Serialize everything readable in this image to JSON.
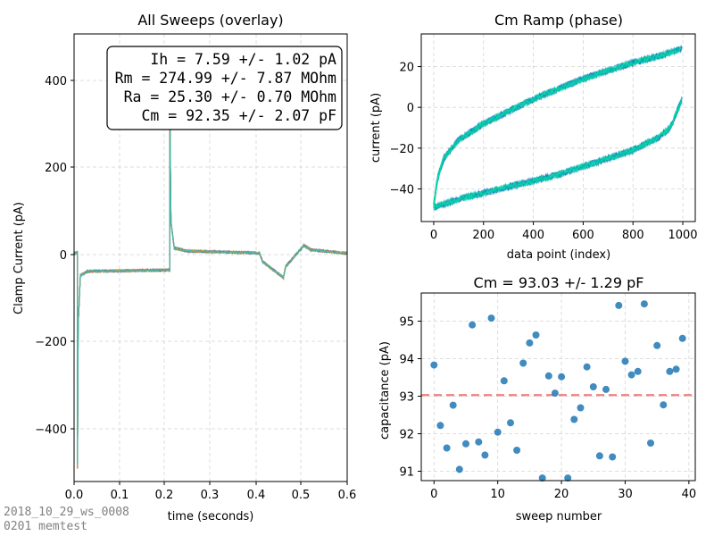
{
  "colors": {
    "sweep_traces": [
      "#1f77b4",
      "#ff7f0e",
      "#2ca02c",
      "#d62728",
      "#9467bd",
      "#8c564b",
      "#e377c2",
      "#7f7f7f",
      "#bcbd22",
      "#17becf"
    ],
    "ramp_start": "#1020d8",
    "ramp_end": "#00f59a",
    "scatter": "#1f77b4",
    "mean_line": "#f08080"
  },
  "footer": {
    "line1": "2018_10_29_ws_0008",
    "line2": "0201 memtest"
  },
  "chart_data": [
    {
      "type": "line",
      "title": "All Sweeps (overlay)",
      "xlabel": "time (seconds)",
      "ylabel": "Clamp Current (pA)",
      "xlim": [
        0,
        0.6
      ],
      "ylim": [
        -510,
        510
      ],
      "xticks": [
        "0.0",
        "0.1",
        "0.2",
        "0.3",
        "0.4",
        "0.5",
        "0.6"
      ],
      "yticks": [
        "−400",
        "−200",
        "0",
        "200",
        "400"
      ],
      "grid": true,
      "stats_box": [
        "Ih = 7.59 +/- 1.02 pA",
        "Rm = 274.99 +/- 7.87 MOhm",
        "Ra = 25.30 +/- 0.70 MOhm",
        "Cm = 92.35 +/- 2.07 pF"
      ],
      "sweep_count": 40,
      "baseline_pA": 9,
      "step_down_pA": -30,
      "peak_down_pA": -470,
      "peak_up_pA": 320,
      "segments": [
        {
          "t": 0.0,
          "i": 9
        },
        {
          "t": 0.007,
          "i": 12
        },
        {
          "t": 0.0075,
          "i": -470
        },
        {
          "t": 0.009,
          "i": -150
        },
        {
          "t": 0.014,
          "i": -40
        },
        {
          "t": 0.03,
          "i": -31
        },
        {
          "t": 0.21,
          "i": -28
        },
        {
          "t": 0.2105,
          "i": 320
        },
        {
          "t": 0.213,
          "i": 80
        },
        {
          "t": 0.22,
          "i": 22
        },
        {
          "t": 0.25,
          "i": 15
        },
        {
          "t": 0.407,
          "i": 11
        },
        {
          "t": 0.415,
          "i": -10
        },
        {
          "t": 0.46,
          "i": -45
        },
        {
          "t": 0.465,
          "i": -20
        },
        {
          "t": 0.505,
          "i": 28
        },
        {
          "t": 0.52,
          "i": 18
        },
        {
          "t": 0.6,
          "i": 10
        }
      ]
    },
    {
      "type": "line",
      "title": "Cm Ramp (phase)",
      "xlabel": "data point (index)",
      "ylabel": "current (pA)",
      "xlim": [
        -50,
        1050
      ],
      "ylim": [
        -56,
        36
      ],
      "xticks": [
        "0",
        "200",
        "400",
        "600",
        "800",
        "1000"
      ],
      "xtick_values": [
        0,
        200,
        400,
        600,
        800,
        1000
      ],
      "yticks": [
        "−40",
        "−20",
        "0",
        "20"
      ],
      "ytick_values": [
        -40,
        -20,
        0,
        20
      ],
      "grid": true,
      "upper_branch": [
        {
          "x": 0,
          "y": -48
        },
        {
          "x": 15,
          "y": -35
        },
        {
          "x": 40,
          "y": -25
        },
        {
          "x": 100,
          "y": -16
        },
        {
          "x": 200,
          "y": -8
        },
        {
          "x": 300,
          "y": -2
        },
        {
          "x": 400,
          "y": 4
        },
        {
          "x": 500,
          "y": 9
        },
        {
          "x": 600,
          "y": 14
        },
        {
          "x": 700,
          "y": 18
        },
        {
          "x": 800,
          "y": 22
        },
        {
          "x": 900,
          "y": 25
        },
        {
          "x": 1000,
          "y": 29
        }
      ],
      "lower_branch": [
        {
          "x": 0,
          "y": -49
        },
        {
          "x": 100,
          "y": -45
        },
        {
          "x": 200,
          "y": -42
        },
        {
          "x": 300,
          "y": -39
        },
        {
          "x": 400,
          "y": -36
        },
        {
          "x": 500,
          "y": -33
        },
        {
          "x": 600,
          "y": -29
        },
        {
          "x": 700,
          "y": -25
        },
        {
          "x": 800,
          "y": -21
        },
        {
          "x": 900,
          "y": -15
        },
        {
          "x": 950,
          "y": -10
        },
        {
          "x": 1000,
          "y": 5
        }
      ]
    },
    {
      "type": "scatter",
      "title": "Cm = 93.03 +/- 1.29 pF",
      "xlabel": "sweep number",
      "ylabel": "capacitance (pA)",
      "xlim": [
        -2,
        41
      ],
      "ylim": [
        90.75,
        95.75
      ],
      "xticks": [
        "0",
        "10",
        "20",
        "30",
        "40"
      ],
      "xtick_values": [
        0,
        10,
        20,
        30,
        40
      ],
      "yticks": [
        "91",
        "92",
        "93",
        "94",
        "95"
      ],
      "ytick_values": [
        91,
        92,
        93,
        94,
        95
      ],
      "grid": true,
      "mean": 93.03,
      "x": [
        0,
        1,
        2,
        3,
        4,
        5,
        6,
        7,
        8,
        9,
        10,
        11,
        12,
        13,
        14,
        15,
        16,
        17,
        18,
        19,
        20,
        21,
        22,
        23,
        24,
        25,
        26,
        27,
        28,
        29,
        30,
        31,
        32,
        33,
        34,
        35,
        36,
        37,
        38,
        39
      ],
      "y": [
        93.83,
        92.22,
        91.62,
        92.76,
        91.05,
        91.73,
        94.9,
        91.78,
        91.43,
        95.08,
        92.04,
        93.41,
        92.29,
        91.56,
        93.88,
        94.42,
        94.63,
        90.82,
        93.54,
        93.08,
        93.52,
        90.82,
        92.38,
        92.69,
        93.78,
        93.25,
        91.41,
        93.18,
        91.38,
        95.42,
        93.93,
        93.57,
        93.66,
        95.46,
        91.75,
        94.35,
        92.77,
        93.66,
        93.72,
        94.54
      ]
    }
  ]
}
